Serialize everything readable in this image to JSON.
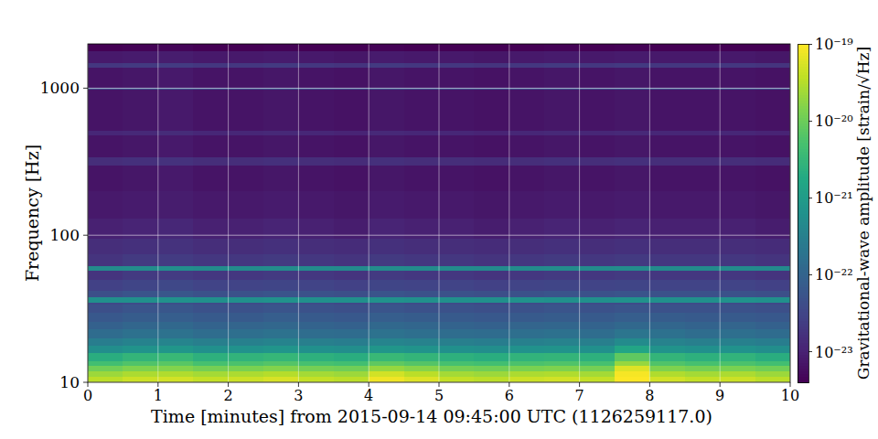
{
  "chart_data": {
    "type": "heatmap",
    "x_label": "Time [minutes] from 2015-09-14 09:45:00 UTC (1126259117.0)",
    "y_label": "Frequency [Hz]",
    "xlim": [
      0,
      10
    ],
    "xticks": [
      0,
      1,
      2,
      3,
      4,
      5,
      6,
      7,
      8,
      9,
      10
    ],
    "ylim": [
      10,
      2000
    ],
    "yticks": [
      10,
      100,
      1000
    ],
    "log": "y",
    "grid": true,
    "time_bins": [
      0,
      0.5,
      1,
      1.5,
      2,
      2.5,
      3,
      3.5,
      4,
      4.5,
      5,
      5.5,
      6,
      6.5,
      7,
      7.5,
      8,
      8.5,
      9,
      9.5,
      10
    ],
    "frequency_bins": [
      10,
      11,
      12,
      13,
      14,
      16,
      18,
      20,
      23,
      26,
      30,
      34,
      35,
      38,
      42,
      50,
      58,
      62,
      75,
      95,
      130,
      200,
      300,
      340,
      480,
      520,
      900,
      980,
      1020,
      1400,
      1500,
      1800,
      2000
    ],
    "cells": [
      [
        3.5e-20,
        4.5e-20,
        5e-20,
        4e-20,
        4.5e-20,
        5.5e-20,
        4e-20,
        3.5e-20,
        8e-20,
        6e-20,
        4e-20,
        3.5e-20,
        4.5e-20,
        5e-20,
        4e-20,
        1e-19,
        5e-20,
        4e-20,
        4.5e-20,
        3.5e-20
      ],
      [
        2.2e-20,
        2.8e-20,
        3e-20,
        2.5e-20,
        2.8e-20,
        3.2e-20,
        2.5e-20,
        2.2e-20,
        5e-20,
        3.5e-20,
        2.5e-20,
        2.2e-20,
        2.8e-20,
        3e-20,
        2.5e-20,
        9e-20,
        3e-20,
        2.5e-20,
        2.8e-20,
        2.2e-20
      ],
      [
        1.1e-20,
        1.4e-20,
        1.5e-20,
        1.2e-20,
        1.3e-20,
        1.5e-20,
        1.2e-20,
        1.1e-20,
        2e-20,
        1.6e-20,
        1.2e-20,
        1.1e-20,
        1.3e-20,
        1.4e-20,
        1.2e-20,
        6e-20,
        1.4e-20,
        1.2e-20,
        1.3e-20,
        1.1e-20
      ],
      [
        4.5e-21,
        6e-21,
        7e-21,
        5e-21,
        5.5e-21,
        6.5e-21,
        5e-21,
        4.5e-21,
        8e-21,
        6.5e-21,
        5e-21,
        4.5e-21,
        5.5e-21,
        6e-21,
        5e-21,
        2e-20,
        6e-21,
        5e-21,
        5.5e-21,
        4.5e-21
      ],
      [
        2.2e-21,
        3e-21,
        3.5e-21,
        2.5e-21,
        2.8e-21,
        3.2e-21,
        2.5e-21,
        2.2e-21,
        3.5e-21,
        3e-21,
        2.5e-21,
        2.2e-21,
        2.8e-21,
        3e-21,
        2.5e-21,
        8e-21,
        3e-21,
        2.5e-21,
        2.8e-21,
        2.2e-21
      ],
      [
        5.5e-22,
        7e-22,
        8e-22,
        6e-22,
        6.5e-22,
        7.5e-22,
        6e-22,
        5.5e-22,
        8e-22,
        7e-22,
        6e-22,
        5.5e-22,
        6.5e-22,
        7e-22,
        6e-22,
        1.5e-21,
        7e-22,
        6e-22,
        6.5e-22,
        5.5e-22
      ],
      [
        2.8e-22,
        3.5e-22,
        3.8e-22,
        3e-22,
        3.2e-22,
        3.6e-22,
        3e-22,
        2.8e-22,
        3.8e-22,
        3.4e-22,
        3e-22,
        2.8e-22,
        3.2e-22,
        3.4e-22,
        3e-22,
        5e-22,
        3.4e-22,
        3e-22,
        3.2e-22,
        2.8e-22
      ],
      [
        1.4e-22,
        1.7e-22,
        1.8e-22,
        1.5e-22,
        1.6e-22,
        1.8e-22,
        1.5e-22,
        1.4e-22,
        1.8e-22,
        1.6e-22,
        1.5e-22,
        1.4e-22,
        1.6e-22,
        1.7e-22,
        1.5e-22,
        2e-22,
        1.7e-22,
        1.5e-22,
        1.6e-22,
        1.4e-22
      ],
      [
        9e-23,
        1.1e-22,
        1.2e-22,
        1e-22,
        1.05e-22,
        1.15e-22,
        1e-22,
        9e-23,
        1.2e-22,
        1.1e-22,
        1e-22,
        9e-23,
        1.05e-22,
        1.1e-22,
        1e-22,
        1.2e-22,
        1.1e-22,
        1e-22,
        1.05e-22,
        9e-23
      ],
      [
        6.5e-23,
        7.5e-23,
        8e-23,
        7e-23,
        7e-23,
        8e-23,
        7e-23,
        6.5e-23,
        8e-23,
        7.5e-23,
        7e-23,
        6.5e-23,
        7e-23,
        7.5e-23,
        7e-23,
        8e-23,
        7.5e-23,
        7e-23,
        7e-23,
        6.5e-23
      ],
      [
        4.5e-23,
        5.5e-23,
        6e-23,
        5e-23,
        5e-23,
        5.5e-23,
        5e-23,
        4.5e-23,
        5.5e-23,
        5e-23,
        5e-23,
        4.5e-23,
        5e-23,
        5.5e-23,
        5e-23,
        5.5e-23,
        5e-23,
        5e-23,
        5e-23,
        4.5e-23
      ],
      [
        3.5e-23,
        4e-23,
        4.5e-23,
        4e-23,
        4e-23,
        4.5e-23,
        4e-23,
        3.5e-23,
        4.5e-23,
        4e-23,
        4e-23,
        3.5e-23,
        4e-23,
        4.5e-23,
        4e-23,
        4e-23,
        4e-23,
        4e-23,
        4e-23,
        3.5e-23
      ],
      [
        6e-22,
        6e-22,
        6.5e-22,
        6e-22,
        6e-22,
        6.5e-22,
        6e-22,
        6e-22,
        6.5e-22,
        6e-22,
        6e-22,
        6e-22,
        6.5e-22,
        6e-22,
        6e-22,
        6.5e-22,
        6e-22,
        6e-22,
        6.5e-22,
        6e-22
      ],
      [
        4.5e-23,
        5.5e-23,
        6e-23,
        5e-23,
        5e-23,
        5.5e-23,
        5e-23,
        4.5e-23,
        5.5e-23,
        5e-23,
        5e-23,
        4.5e-23,
        5e-23,
        5.5e-23,
        5e-23,
        5.5e-23,
        5e-23,
        5e-23,
        5e-23,
        4.5e-23
      ],
      [
        2.8e-23,
        3.2e-23,
        3.5e-23,
        3e-23,
        3e-23,
        3.2e-23,
        3e-23,
        2.8e-23,
        3.2e-23,
        3e-23,
        3e-23,
        2.8e-23,
        3e-23,
        3.2e-23,
        3e-23,
        3.2e-23,
        3e-23,
        3e-23,
        3e-23,
        2.8e-23
      ],
      [
        1.8e-23,
        2.2e-23,
        2.3e-23,
        2e-23,
        2e-23,
        2.2e-23,
        2e-23,
        1.8e-23,
        2.2e-23,
        2e-23,
        2e-23,
        1.8e-23,
        2e-23,
        2.2e-23,
        2e-23,
        2.2e-23,
        2e-23,
        2e-23,
        2e-23,
        1.8e-23
      ],
      [
        5e-22,
        5.2e-22,
        5.5e-22,
        5e-22,
        5e-22,
        5.2e-22,
        5e-22,
        4.8e-22,
        5.2e-22,
        5e-22,
        5e-22,
        4.8e-22,
        5e-22,
        5.2e-22,
        5e-22,
        5.2e-22,
        5e-22,
        5e-22,
        5e-22,
        4.8e-22
      ],
      [
        1.8e-23,
        2.2e-23,
        2.3e-23,
        2e-23,
        2e-23,
        2.2e-23,
        2e-23,
        1.8e-23,
        2.2e-23,
        2e-23,
        2e-23,
        1.8e-23,
        2e-23,
        2.2e-23,
        2e-23,
        2.2e-23,
        2e-23,
        2e-23,
        2e-23,
        1.8e-23
      ],
      [
        1.5e-23,
        1.6e-23,
        1.7e-23,
        1.5e-23,
        1.5e-23,
        1.6e-23,
        1.5e-23,
        1.4e-23,
        1.6e-23,
        1.5e-23,
        1.5e-23,
        1.4e-23,
        1.5e-23,
        1.6e-23,
        1.5e-23,
        1.6e-23,
        1.5e-23,
        1.5e-23,
        1.5e-23,
        1.4e-23
      ],
      [
        1e-23,
        1.1e-23,
        1.2e-23,
        1e-23,
        1e-23,
        1.1e-23,
        1e-23,
        9e-24,
        1.1e-23,
        1e-23,
        1e-23,
        9e-24,
        1e-23,
        1.1e-23,
        1e-23,
        1.1e-23,
        1e-23,
        1e-23,
        1e-23,
        9e-24
      ],
      [
        8e-24,
        8.5e-24,
        9e-24,
        8e-24,
        8e-24,
        8.5e-24,
        8e-24,
        7.5e-24,
        8.5e-24,
        8e-24,
        8e-24,
        7.5e-24,
        8e-24,
        8.5e-24,
        8e-24,
        8.5e-24,
        8e-24,
        8e-24,
        8e-24,
        7.5e-24
      ],
      [
        7e-24,
        7.5e-24,
        8e-24,
        7e-24,
        7e-24,
        7.5e-24,
        7e-24,
        6.5e-24,
        7.5e-24,
        7e-24,
        7e-24,
        6.5e-24,
        7e-24,
        7.5e-24,
        7e-24,
        7.5e-24,
        7e-24,
        7e-24,
        7e-24,
        6.5e-24
      ],
      [
        1.5e-23,
        1.6e-23,
        1.7e-23,
        1.5e-23,
        1.5e-23,
        1.6e-23,
        1.5e-23,
        1.4e-23,
        1.6e-23,
        1.5e-23,
        1.5e-23,
        1.4e-23,
        1.5e-23,
        1.6e-23,
        1.5e-23,
        1.6e-23,
        1.5e-23,
        1.5e-23,
        1.5e-23,
        1.4e-23
      ],
      [
        7e-24,
        7.5e-24,
        8e-24,
        7e-24,
        7e-24,
        7.5e-24,
        7e-24,
        6.5e-24,
        7.5e-24,
        7e-24,
        7e-24,
        6.5e-24,
        7e-24,
        7.5e-24,
        7e-24,
        7.5e-24,
        7e-24,
        7e-24,
        7e-24,
        6.5e-24
      ],
      [
        1.2e-23,
        1.3e-23,
        1.4e-23,
        1.2e-23,
        1.2e-23,
        1.3e-23,
        1.2e-23,
        1.1e-23,
        1.3e-23,
        1.2e-23,
        1.2e-23,
        1.1e-23,
        1.2e-23,
        1.3e-23,
        1.2e-23,
        1.3e-23,
        1.2e-23,
        1.2e-23,
        1.2e-23,
        1.1e-23
      ],
      [
        7e-24,
        7.5e-24,
        8e-24,
        7e-24,
        7e-24,
        7.5e-24,
        7e-24,
        6.5e-24,
        7.5e-24,
        7e-24,
        7e-24,
        6.5e-24,
        7e-24,
        7.5e-24,
        7e-24,
        7.5e-24,
        7e-24,
        7e-24,
        7e-24,
        6.5e-24
      ],
      [
        7e-24,
        7.5e-24,
        8e-24,
        7e-24,
        7e-24,
        7.5e-24,
        7e-24,
        6.5e-24,
        7.5e-24,
        7e-24,
        7e-24,
        6.5e-24,
        7e-24,
        7.5e-24,
        7e-24,
        7.5e-24,
        7e-24,
        7e-24,
        7e-24,
        6.5e-24
      ],
      [
        4e-23,
        4.2e-23,
        4.5e-23,
        4e-23,
        4e-23,
        4.2e-23,
        4e-23,
        3.8e-23,
        4.2e-23,
        4e-23,
        4e-23,
        3.8e-23,
        4e-23,
        4.2e-23,
        4e-23,
        4.2e-23,
        4e-23,
        4e-23,
        4e-23,
        3.8e-23
      ],
      [
        7e-24,
        7.5e-24,
        8e-24,
        7e-24,
        7e-24,
        7.5e-24,
        7e-24,
        6.5e-24,
        7.5e-24,
        7e-24,
        7e-24,
        6.5e-24,
        7e-24,
        7.5e-24,
        7e-24,
        7.5e-24,
        7e-24,
        7e-24,
        7e-24,
        6.5e-24
      ],
      [
        2e-23,
        2.2e-23,
        2.3e-23,
        2e-23,
        2e-23,
        2.2e-23,
        2e-23,
        1.8e-23,
        2.2e-23,
        2e-23,
        2e-23,
        1.8e-23,
        2e-23,
        2.2e-23,
        2e-23,
        2.2e-23,
        2e-23,
        2e-23,
        2e-23,
        1.8e-23
      ],
      [
        8e-24,
        8.5e-24,
        9e-24,
        8e-24,
        8e-24,
        8.5e-24,
        8e-24,
        7.5e-24,
        8.5e-24,
        8e-24,
        8e-24,
        7.5e-24,
        8e-24,
        8.5e-24,
        8e-24,
        8.5e-24,
        8e-24,
        8e-24,
        8e-24,
        7.5e-24
      ],
      [
        4e-24,
        4.2e-24,
        4.5e-24,
        4e-24,
        4e-24,
        4.2e-24,
        4e-24,
        4e-24,
        4.2e-24,
        4e-24,
        4e-24,
        4e-24,
        4e-24,
        4.2e-24,
        4e-24,
        4.2e-24,
        4e-24,
        4e-24,
        4e-24,
        4e-24
      ]
    ],
    "colorbar": {
      "label": "Gravitational-wave amplitude [strain/√Hz]",
      "range": [
        4e-24,
        1e-19
      ],
      "log": true,
      "ticks": [
        {
          "value": 1e-19,
          "label": "10⁻¹⁹"
        },
        {
          "value": 1e-20,
          "label": "10⁻²⁰"
        },
        {
          "value": 1e-21,
          "label": "10⁻²¹"
        },
        {
          "value": 1e-22,
          "label": "10⁻²²"
        },
        {
          "value": 1e-23,
          "label": "10⁻²³"
        }
      ]
    }
  }
}
